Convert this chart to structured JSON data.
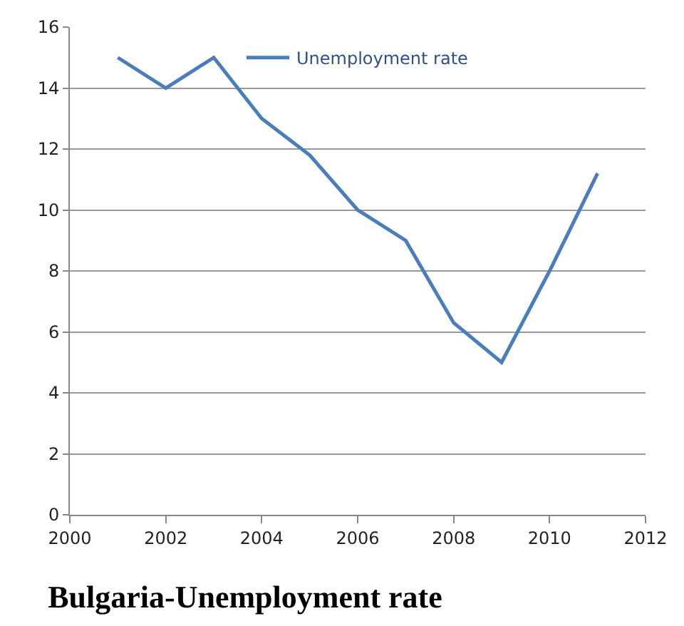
{
  "chart_data": {
    "type": "line",
    "title": "Bulgaria-Unemployment rate",
    "x": [
      2001,
      2002,
      2003,
      2004,
      2005,
      2006,
      2007,
      2008,
      2009,
      2010,
      2011
    ],
    "series": [
      {
        "name": "Unemployment rate",
        "color": "#4a7ebb",
        "values": [
          15.0,
          14.0,
          15.0,
          13.0,
          11.8,
          10.0,
          9.0,
          6.3,
          5.0,
          8.0,
          11.2
        ]
      }
    ],
    "xlim": [
      2000,
      2012
    ],
    "xticks": [
      2000,
      2002,
      2004,
      2006,
      2008,
      2010,
      2012
    ],
    "ylim": [
      0,
      16
    ],
    "yticks": [
      0,
      2,
      4,
      6,
      8,
      10,
      12,
      14,
      16
    ],
    "grid": "y",
    "legend": "top",
    "marker": "none",
    "line_style": "solid"
  }
}
